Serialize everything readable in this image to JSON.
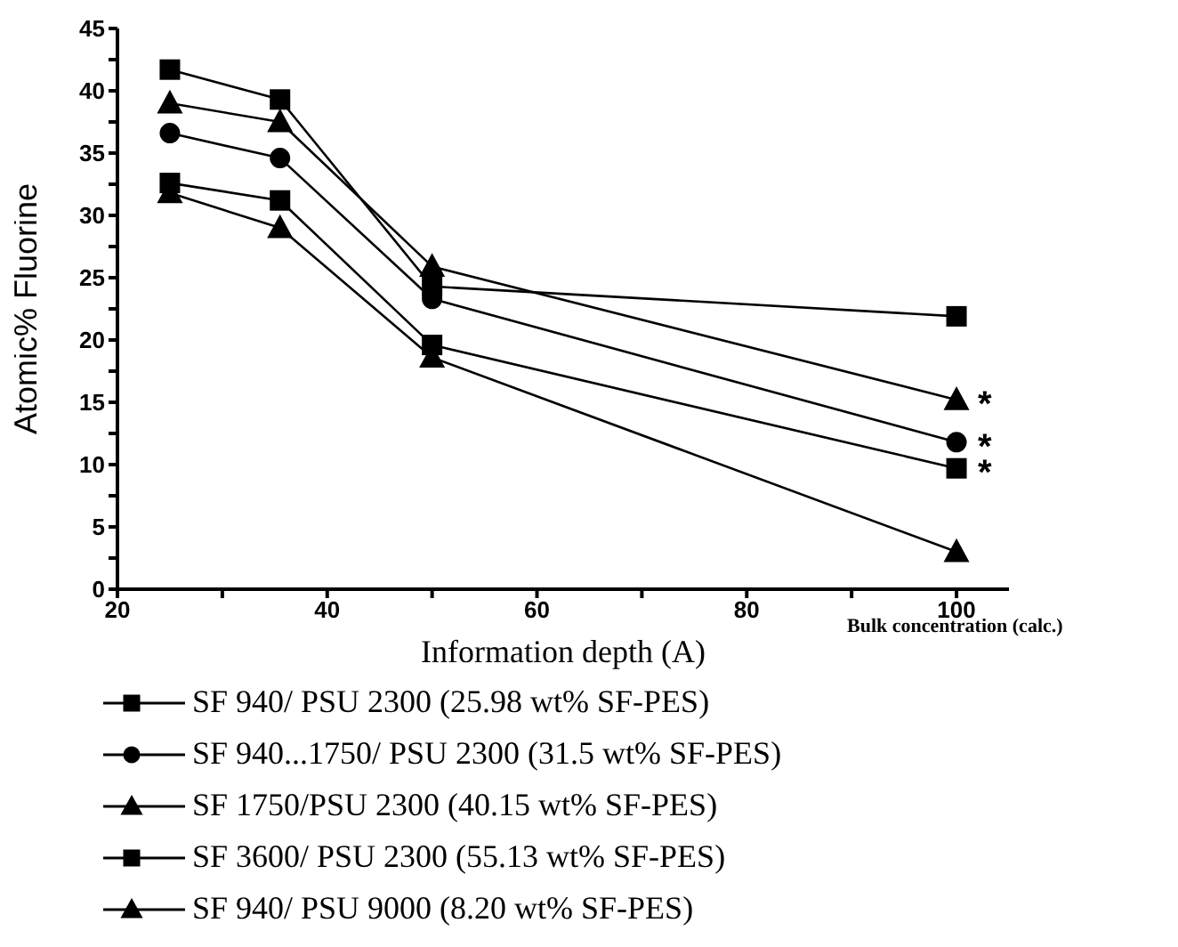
{
  "chart_data": {
    "type": "line",
    "xlabel": "Information depth (A)",
    "ylabel": "Atomic% Fluorine",
    "x": [
      25,
      35.5,
      50,
      100
    ],
    "series": [
      {
        "name": "SF 940/ PSU 2300 (25.98 wt% SF-PES)",
        "color": "#000000",
        "marker": "square",
        "values": [
          32.6,
          31.2,
          19.6,
          9.7
        ],
        "value_labels": [
          null,
          null,
          null,
          "*"
        ]
      },
      {
        "name": "SF 940...1750/ PSU 2300 (31.5 wt% SF-PES)",
        "color": "#000000",
        "marker": "circle",
        "values": [
          36.6,
          34.6,
          23.3,
          11.8
        ],
        "value_labels": [
          null,
          null,
          null,
          "*"
        ]
      },
      {
        "name": "SF 1750/PSU 2300 (40.15 wt% SF-PES)",
        "color": "#000000",
        "marker": "triangle",
        "values": [
          39.0,
          37.5,
          25.9,
          15.2
        ],
        "value_labels": [
          null,
          null,
          null,
          "*"
        ]
      },
      {
        "name": "SF 3600/ PSU 2300 (55.13 wt% SF-PES)",
        "color": "#000000",
        "marker": "square",
        "values": [
          41.7,
          39.3,
          24.3,
          21.9
        ]
      },
      {
        "name": "SF 940/ PSU 9000 (8.20 wt% SF-PES)",
        "color": "#000000",
        "marker": "triangle",
        "values": [
          31.8,
          29.0,
          18.6,
          3.0
        ]
      }
    ],
    "xlim": [
      20,
      105
    ],
    "xticks": [
      20,
      {
        "value": 30,
        "label": null
      },
      40,
      {
        "value": 50,
        "label": null
      },
      60,
      {
        "value": 70,
        "label": null
      },
      80,
      {
        "value": 90,
        "label": null
      },
      100
    ],
    "ylim": [
      0,
      45
    ],
    "yticks": [
      0,
      {
        "value": 2.5,
        "label": null
      },
      5,
      {
        "value": 7.5,
        "label": null
      },
      10,
      {
        "value": 12.5,
        "label": null
      },
      15,
      {
        "value": 17.5,
        "label": null
      },
      20,
      {
        "value": 22.5,
        "label": null
      },
      25,
      {
        "value": 27.5,
        "label": null
      },
      30,
      {
        "value": 32.5,
        "label": null
      },
      35,
      {
        "value": 37.5,
        "label": null
      },
      40,
      {
        "value": 42.5,
        "label": null
      },
      45
    ],
    "annotations": [
      "Bulk concentration (calc.)"
    ],
    "legend": "bottom",
    "line_style": "solid"
  }
}
